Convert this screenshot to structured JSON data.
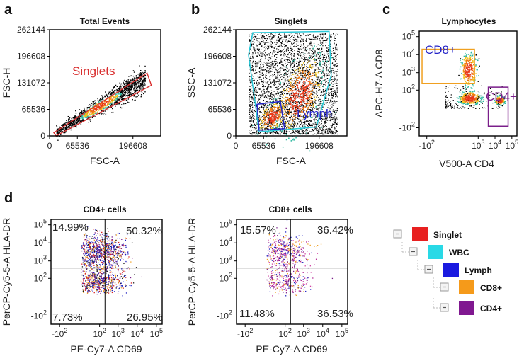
{
  "panels": {
    "a": "a",
    "b": "b",
    "c": "c",
    "d": "d"
  },
  "colors": {
    "singlet": "#d93030",
    "wbc": "#29c9d9",
    "lymph": "#2424c8",
    "cd8": "#f0a020",
    "cd4": "#7a1e8a",
    "density_hi": "#e83a1a",
    "density_mid": "#f2c21a",
    "density_low": "#2eb8a0"
  },
  "chart_data": [
    {
      "id": "total-events",
      "type": "scatter",
      "title": "Total Events",
      "xlabel": "FSC-A",
      "ylabel": "FSC-H",
      "xticks": [
        "0",
        "65536",
        "196608"
      ],
      "xtick_values": [
        0,
        65536,
        196608
      ],
      "yticks": [
        "262144",
        "196608",
        "131072",
        "65536",
        "0"
      ],
      "ytick_values": [
        262144,
        196608,
        131072,
        65536,
        0
      ],
      "xlim": [
        0,
        262144
      ],
      "ylim": [
        0,
        262144
      ],
      "gates": [
        {
          "name": "Singlets",
          "color": "#d93030",
          "vertices": [
            [
              10000,
              8000
            ],
            [
              230000,
              155000
            ],
            [
              240000,
              125000
            ],
            [
              15000,
              0
            ]
          ]
        }
      ]
    },
    {
      "id": "singlets",
      "type": "scatter",
      "title": "Singlets",
      "xlabel": "FSC-A",
      "ylabel": "SSC-A",
      "xticks": [
        "0",
        "65536",
        "196608"
      ],
      "xtick_values": [
        0,
        65536,
        196608
      ],
      "yticks": [
        "262144",
        "196608",
        "131072",
        "65536",
        "0"
      ],
      "ytick_values": [
        262144,
        196608,
        131072,
        65536,
        0
      ],
      "xlim": [
        0,
        262144
      ],
      "ylim": [
        0,
        262144
      ],
      "gates": [
        {
          "name": "WBC",
          "color": "#29c9d9",
          "vertices": [
            [
              40000,
              255000
            ],
            [
              220000,
              258000
            ],
            [
              225000,
              150000
            ],
            [
              190000,
              22000
            ],
            [
              55000,
              10000
            ],
            [
              30000,
              200000
            ]
          ]
        },
        {
          "name": "Lymph",
          "color": "#2424c8",
          "vertices": [
            [
              50000,
              78000
            ],
            [
              105000,
              85000
            ],
            [
              115000,
              18000
            ],
            [
              55000,
              14000
            ]
          ]
        }
      ]
    },
    {
      "id": "lymphocytes",
      "type": "scatter",
      "title": "Lymphocytes",
      "xlabel": "V500-A CD4",
      "ylabel": "APC-H7-A CD8",
      "xticks": [
        "-10^2",
        "10^3",
        "10^4",
        "10^5"
      ],
      "xtick_values": [
        -100,
        1000,
        10000,
        100000
      ],
      "yticks": [
        "10^5",
        "10^4",
        "10^3",
        "10^2",
        "-10^2"
      ],
      "ytick_values": [
        100000,
        10000,
        1000,
        100,
        -100
      ],
      "gates": [
        {
          "name": "CD8+",
          "color": "#f0a020",
          "xrange": [
            -200,
            600
          ],
          "yrange": [
            250,
            20000
          ]
        },
        {
          "name": "CD4+",
          "color": "#7a1e8a",
          "xrange": [
            4000,
            60000
          ],
          "yrange": [
            -80,
            150
          ]
        }
      ]
    },
    {
      "id": "cd4-cells",
      "type": "scatter",
      "title": "CD4+ cells",
      "xlabel": "PE-Cy7-A CD69",
      "ylabel": "PerCP-Cy5-5-A HLA-DR",
      "xticks": [
        "-10^2",
        "10^2",
        "10^3",
        "10^4",
        "10^5"
      ],
      "xtick_values": [
        -100,
        100,
        1000,
        10000,
        100000
      ],
      "yticks": [
        "10^5",
        "10^4",
        "10^3",
        "10^2",
        "-10^2"
      ],
      "ytick_values": [
        100000,
        10000,
        1000,
        100,
        -100
      ],
      "quadrant_threshold": {
        "x": 200,
        "y": 400
      },
      "quadrants": {
        "upper_left": "14.99%",
        "upper_right": "50.32%",
        "lower_left": "7.73%",
        "lower_right": "26.95%"
      }
    },
    {
      "id": "cd8-cells",
      "type": "scatter",
      "title": "CD8+ cells",
      "xlabel": "PE-Cy7-A CD69",
      "ylabel": "PerCP-Cy5-5-A HLA-DR",
      "xticks": [
        "-10^2",
        "10^2",
        "10^3",
        "10^4",
        "10^5"
      ],
      "xtick_values": [
        -100,
        100,
        1000,
        10000,
        100000
      ],
      "yticks": [
        "10^5",
        "10^4",
        "10^3",
        "10^2",
        "-10^2"
      ],
      "ytick_values": [
        100000,
        10000,
        1000,
        100,
        -100
      ],
      "quadrant_threshold": {
        "x": 200,
        "y": 400
      },
      "quadrants": {
        "upper_left": "15.57%",
        "upper_right": "36.42%",
        "lower_left": "11.48%",
        "lower_right": "36.53%"
      }
    }
  ],
  "hierarchy": [
    {
      "name": "Singlet",
      "color": "#e82020",
      "level": 0
    },
    {
      "name": "WBC",
      "color": "#29d9e6",
      "level": 1
    },
    {
      "name": "Lymph",
      "color": "#1a1ae0",
      "level": 2
    },
    {
      "name": "CD8+",
      "color": "#f59a1a",
      "level": 3
    },
    {
      "name": "CD4+",
      "color": "#801890",
      "level": 3
    }
  ]
}
